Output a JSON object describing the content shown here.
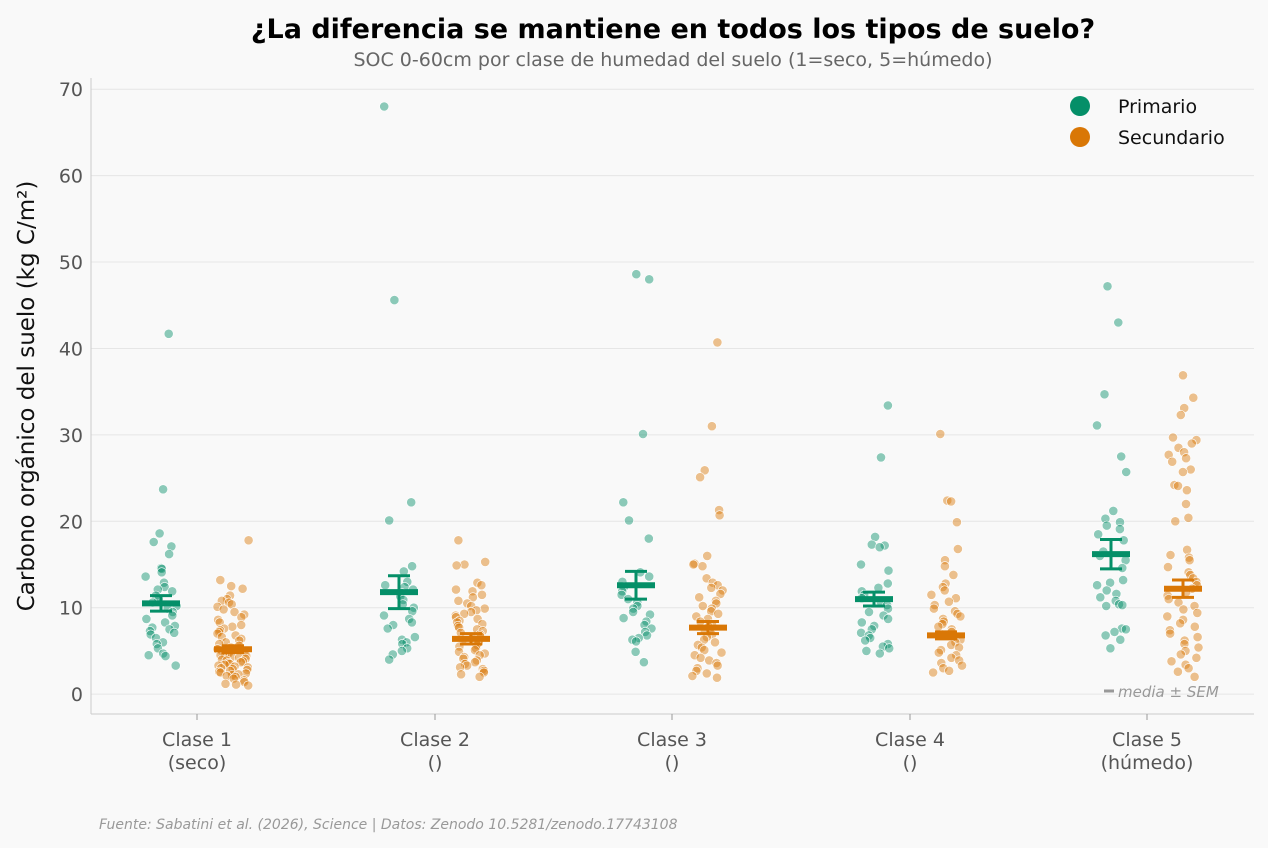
{
  "chart_data": {
    "type": "scatter",
    "title": "¿La diferencia se mantiene en todos los tipos de suelo?",
    "subtitle": "SOC 0-60cm por clase de humedad del suelo (1=seco, 5=húmedo)",
    "xlabel": "",
    "ylabel": "Carbono orgánico del suelo (kg C/m²)",
    "ylim": [
      -2.3,
      71.3
    ],
    "yticks": [
      0,
      10,
      20,
      30,
      40,
      50,
      60,
      70
    ],
    "grid": "horizontal",
    "legend_position": "top-right",
    "categories": [
      {
        "label": "Clase 1",
        "sublabel": "(seco)"
      },
      {
        "label": "Clase 2",
        "sublabel": "()"
      },
      {
        "label": "Clase 3",
        "sublabel": "()"
      },
      {
        "label": "Clase 4",
        "sublabel": "()"
      },
      {
        "label": "Clase 5",
        "sublabel": "(húmedo)"
      }
    ],
    "series": [
      {
        "name": "Primario",
        "color": "#058f68",
        "summary": [
          {
            "mean": 10.5,
            "sem": 0.9
          },
          {
            "mean": 11.8,
            "sem": 1.9
          },
          {
            "mean": 12.6,
            "sem": 1.6
          },
          {
            "mean": 11.0,
            "sem": 0.8
          },
          {
            "mean": 16.2,
            "sem": 1.7
          }
        ],
        "points": [
          [
            41.7,
            23.7,
            18.6,
            17.6,
            17.1,
            16.2,
            14.6,
            14.5,
            14.1,
            13.6,
            12.9,
            12.4,
            12.1,
            11.9,
            11.4,
            11.0,
            10.6,
            10.2,
            9.9,
            9.5,
            9.1,
            8.7,
            8.3,
            7.9,
            7.7,
            7.5,
            7.3,
            7.1,
            6.9,
            6.5,
            6.0,
            5.8,
            5.3,
            4.7,
            4.5,
            4.4,
            3.3
          ],
          [
            68.0,
            45.6,
            22.2,
            20.1,
            14.8,
            14.2,
            13.0,
            12.6,
            12.4,
            12.1,
            11.7,
            11.3,
            10.9,
            10.4,
            10.0,
            9.6,
            9.1,
            8.7,
            8.3,
            8.0,
            7.6,
            6.6,
            6.3,
            6.0,
            5.8,
            5.3,
            5.0,
            4.6,
            4.0
          ],
          [
            48.6,
            48.0,
            30.1,
            22.2,
            20.1,
            18.0,
            14.1,
            13.6,
            13.0,
            12.4,
            11.9,
            11.5,
            11.0,
            10.6,
            10.2,
            9.9,
            9.5,
            9.2,
            8.8,
            8.4,
            8.0,
            7.6,
            7.2,
            6.8,
            6.5,
            6.3,
            6.1,
            4.9,
            3.7
          ],
          [
            33.4,
            27.4,
            18.2,
            17.3,
            17.2,
            17.0,
            15.0,
            14.3,
            12.8,
            12.3,
            11.9,
            11.5,
            11.1,
            10.7,
            10.3,
            9.9,
            9.5,
            9.1,
            8.7,
            8.3,
            7.9,
            7.5,
            7.1,
            6.8,
            6.5,
            6.2,
            5.8,
            5.5,
            5.3,
            5.0,
            4.7
          ],
          [
            47.2,
            43.0,
            34.7,
            31.1,
            27.5,
            25.7,
            21.2,
            20.3,
            19.9,
            19.5,
            19.1,
            18.5,
            17.8,
            16.5,
            16.0,
            15.5,
            14.6,
            13.2,
            12.9,
            12.6,
            12.0,
            11.6,
            11.2,
            10.8,
            10.4,
            10.3,
            10.2,
            7.6,
            7.5,
            7.2,
            6.8,
            6.3,
            5.3
          ]
        ]
      },
      {
        "name": "Secundario",
        "color": "#d97706",
        "summary": [
          {
            "mean": 5.2,
            "sem": 0.4
          },
          {
            "mean": 6.4,
            "sem": 0.6
          },
          {
            "mean": 7.7,
            "sem": 0.7
          },
          {
            "mean": 6.8,
            "sem": 0.4
          },
          {
            "mean": 12.2,
            "sem": 1.0
          }
        ],
        "points": [
          [
            17.8,
            13.2,
            12.5,
            12.2,
            11.4,
            11.0,
            10.8,
            10.6,
            10.4,
            10.1,
            9.8,
            9.5,
            9.2,
            8.9,
            8.6,
            8.3,
            8.0,
            7.8,
            7.6,
            7.4,
            7.2,
            7.0,
            6.8,
            6.6,
            6.4,
            6.2,
            6.0,
            5.8,
            5.6,
            5.4,
            5.2,
            5.0,
            4.9,
            4.8,
            4.7,
            4.6,
            4.5,
            4.4,
            4.3,
            4.2,
            4.1,
            4.0,
            3.9,
            3.8,
            3.7,
            3.6,
            3.5,
            3.4,
            3.3,
            3.2,
            3.1,
            3.0,
            2.9,
            2.8,
            2.7,
            2.6,
            2.5,
            2.4,
            2.3,
            2.2,
            2.1,
            2.0,
            1.8,
            1.6,
            1.4,
            1.2,
            1.1,
            1.0
          ],
          [
            17.8,
            15.3,
            15.0,
            14.9,
            12.9,
            12.6,
            12.1,
            11.9,
            11.5,
            11.2,
            10.8,
            10.5,
            10.2,
            9.9,
            9.7,
            9.5,
            9.3,
            9.1,
            8.9,
            8.7,
            8.5,
            8.3,
            8.1,
            7.9,
            7.7,
            7.5,
            7.3,
            7.1,
            6.9,
            6.7,
            6.5,
            6.3,
            6.1,
            5.9,
            5.7,
            5.5,
            5.3,
            5.1,
            4.9,
            4.7,
            4.5,
            4.3,
            4.1,
            3.9,
            3.7,
            3.5,
            3.3,
            3.1,
            2.9,
            2.7,
            2.5,
            2.3,
            2.0
          ],
          [
            40.7,
            31.0,
            25.9,
            25.1,
            21.3,
            20.7,
            16.0,
            15.1,
            15.0,
            14.8,
            13.4,
            12.9,
            12.6,
            12.3,
            12.0,
            11.6,
            11.2,
            10.8,
            10.5,
            10.2,
            9.9,
            9.6,
            9.3,
            9.0,
            8.7,
            8.4,
            8.1,
            7.8,
            7.5,
            7.2,
            6.9,
            6.6,
            6.3,
            6.0,
            5.7,
            5.4,
            5.1,
            4.8,
            4.5,
            4.2,
            3.9,
            3.6,
            3.3,
            3.0,
            2.7,
            2.4,
            2.1,
            1.9
          ],
          [
            30.1,
            22.4,
            22.3,
            19.9,
            16.8,
            15.5,
            14.8,
            13.8,
            12.8,
            12.4,
            12.0,
            11.5,
            11.1,
            10.7,
            10.3,
            9.9,
            9.6,
            9.3,
            9.0,
            8.7,
            8.4,
            8.1,
            7.8,
            7.5,
            7.2,
            6.9,
            6.6,
            6.3,
            6.0,
            5.7,
            5.4,
            5.1,
            4.8,
            4.5,
            4.2,
            3.9,
            3.6,
            3.3,
            3.0,
            2.7,
            2.5
          ],
          [
            36.9,
            34.3,
            33.1,
            32.3,
            29.7,
            29.4,
            29.0,
            28.5,
            28.0,
            27.7,
            27.3,
            26.9,
            26.0,
            25.7,
            24.2,
            24.1,
            23.6,
            22.0,
            20.4,
            20.0,
            16.7,
            16.1,
            15.8,
            15.5,
            14.7,
            14.1,
            13.8,
            13.4,
            13.0,
            12.6,
            12.2,
            11.8,
            11.4,
            11.0,
            10.6,
            10.2,
            9.8,
            9.4,
            9.0,
            8.6,
            8.2,
            7.8,
            7.4,
            7.0,
            6.6,
            6.2,
            5.8,
            5.4,
            5.0,
            4.6,
            4.2,
            3.8,
            3.4,
            3.0,
            2.6,
            2.0
          ]
        ]
      }
    ],
    "annotation": "media ± SEM",
    "source": "Fuente: Sabatini et al. (2026), Science | Datos: Zenodo 10.5281/zenodo.17743108"
  }
}
